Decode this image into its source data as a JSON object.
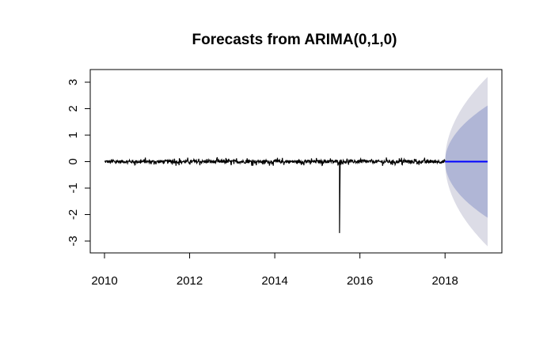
{
  "chart_data": {
    "type": "line",
    "title": "Forecasts from ARIMA(0,1,0)",
    "xlabel": "",
    "ylabel": "",
    "xlim": [
      2010,
      2019
    ],
    "ylim": [
      -3,
      3
    ],
    "x_ticks": [
      "2010",
      "2012",
      "2014",
      "2016",
      "2018"
    ],
    "y_ticks": [
      "-3",
      "-2",
      "-1",
      "0",
      "1",
      "2",
      "3"
    ],
    "grid": false,
    "legend": "none",
    "series": [
      {
        "kind": "observed",
        "color": "#000000",
        "x_start": 2010.0,
        "x_end": 2018.0,
        "baseline": 0.0,
        "noise_amplitude": 0.1,
        "spike": {
          "x": 2015.52,
          "y": -2.7
        }
      },
      {
        "kind": "point_forecast",
        "color": "#0000ff",
        "x": [
          2018.0,
          2019.0
        ],
        "y": [
          0.0,
          0.0
        ]
      },
      {
        "kind": "interval_95",
        "color": "#dcdce6",
        "x": [
          2018.0,
          2018.25,
          2018.5,
          2018.75,
          2019.0
        ],
        "upper": [
          0.0,
          1.6,
          2.26,
          2.77,
          3.2
        ],
        "lower": [
          0.0,
          -1.6,
          -2.26,
          -2.77,
          -3.2
        ]
      },
      {
        "kind": "interval_80",
        "color": "#b0b6d6",
        "x": [
          2018.0,
          2018.25,
          2018.5,
          2018.75,
          2019.0
        ],
        "upper": [
          0.0,
          1.06,
          1.5,
          1.84,
          2.12
        ],
        "lower": [
          0.0,
          -1.06,
          -1.5,
          -1.84,
          -2.12
        ]
      }
    ]
  }
}
